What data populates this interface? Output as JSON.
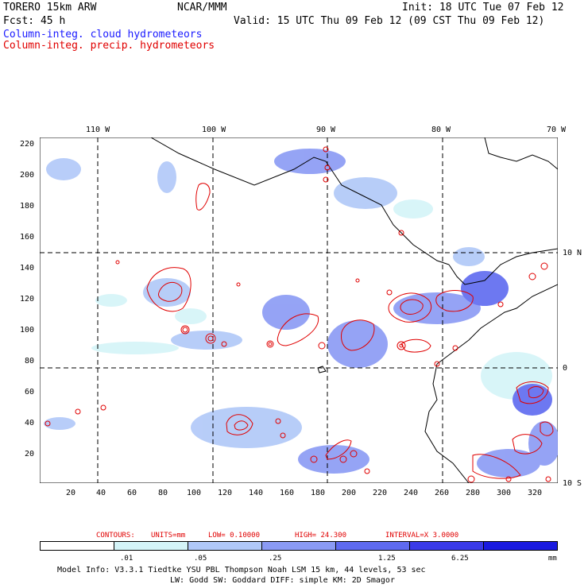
{
  "header": {
    "model_line": "TORERO  15km ARW",
    "org": "NCAR/MMM",
    "init": "Init: 18 UTC Tue 07 Feb 12",
    "fcst": "Fcst:   45 h",
    "valid": "Valid: 15 UTC Thu 09 Feb 12 (09 CST Thu 09 Feb 12)",
    "legend_cloud": "Column-integ. cloud hydrometeors",
    "legend_precip": "Column-integ. precip. hydrometeors"
  },
  "colors": {
    "cloud": "#1a1aff",
    "precip": "#e00000"
  },
  "map": {
    "lon_labels": [
      "110 W",
      "100 W",
      "90 W",
      "80 W",
      "70 W"
    ],
    "lat_labels": [
      "10 N",
      "0",
      "10 S"
    ],
    "y_ticks": [
      "220",
      "200",
      "180",
      "160",
      "140",
      "120",
      "100",
      "80",
      "60",
      "40",
      "20"
    ],
    "x_ticks": [
      "20",
      "40",
      "60",
      "80",
      "100",
      "120",
      "140",
      "160",
      "180",
      "200",
      "220",
      "240",
      "260",
      "280",
      "300",
      "320"
    ]
  },
  "contour_info": {
    "contours": "CONTOURS:",
    "units": "UNITS=mm",
    "low": "LOW= 0.10000",
    "high": "HIGH=  24.300",
    "interval": "INTERVAL=X  3.0000"
  },
  "colorbar": {
    "labels": [
      ".01",
      ".05",
      ".25",
      "1.25",
      "6.25"
    ],
    "unit": "mm",
    "colors": [
      "#ffffff",
      "#d4f4f8",
      "#b0c8f8",
      "#8a9af4",
      "#5e6af0",
      "#3a3ae8",
      "#1a1ae0"
    ]
  },
  "footer": {
    "line1": "Model Info: V3.3.1    Tiedtke YSU PBL  Thompson     Noah LSM  15 km,    44 levels,    53 sec",
    "line2": "LW: Godd SW: Goddard DIFF: simple KM: 2D Smagor"
  }
}
